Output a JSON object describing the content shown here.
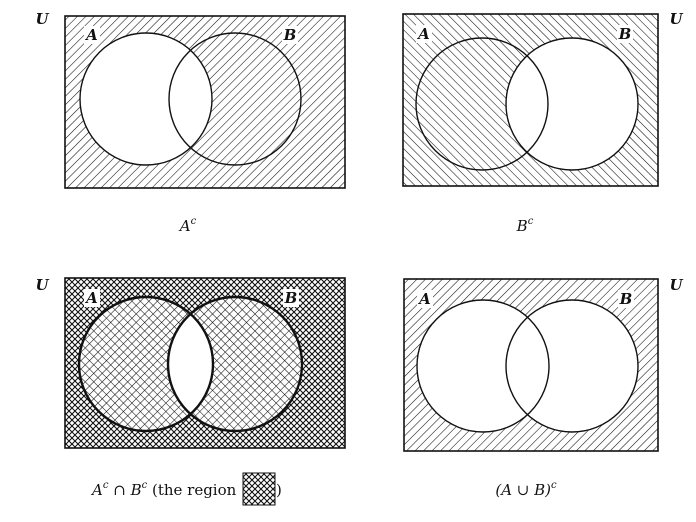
{
  "universe_label": "U",
  "set_a_label": "A",
  "set_b_label": "B",
  "panels": [
    {
      "id": "a-complement",
      "caption_base": "A",
      "caption_sup": "c"
    },
    {
      "id": "b-complement",
      "caption_base": "B",
      "caption_sup": "c"
    },
    {
      "id": "a-c-intersect-b-c",
      "caption_a": "A",
      "caption_sup1": "c",
      "caption_op": " ∩ ",
      "caption_b": "B",
      "caption_sup2": "c",
      "caption_rest": " (the region ",
      "caption_close": " )"
    },
    {
      "id": "a-union-b-complement",
      "caption_open": "(A ∪ B)",
      "caption_sup": "c"
    }
  ]
}
